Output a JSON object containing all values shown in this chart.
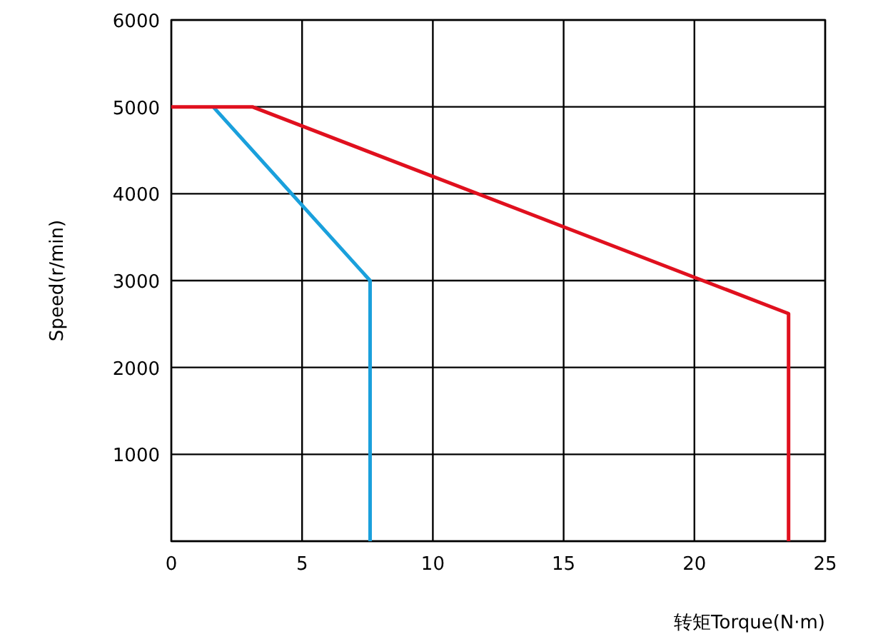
{
  "chart_data": {
    "type": "line",
    "xlabel": "转矩Torque(N·m)",
    "ylabel": "Speed(r/min)",
    "xlim": [
      0,
      25
    ],
    "ylim": [
      0,
      6000
    ],
    "xticks": [
      0,
      5,
      10,
      15,
      20,
      25
    ],
    "yticks": [
      {
        "value": 0,
        "label": null
      },
      1000,
      2000,
      3000,
      4000,
      5000,
      6000
    ],
    "grid": true,
    "series": [
      {
        "color": "#1aa0dc",
        "x": [
          1.6,
          7.6,
          7.6
        ],
        "values": [
          5000,
          3000,
          0
        ]
      },
      {
        "color": "#e0101e",
        "x": [
          0,
          3.1,
          23.6,
          23.6
        ],
        "values": [
          5000,
          5000,
          2620,
          0
        ]
      }
    ]
  }
}
